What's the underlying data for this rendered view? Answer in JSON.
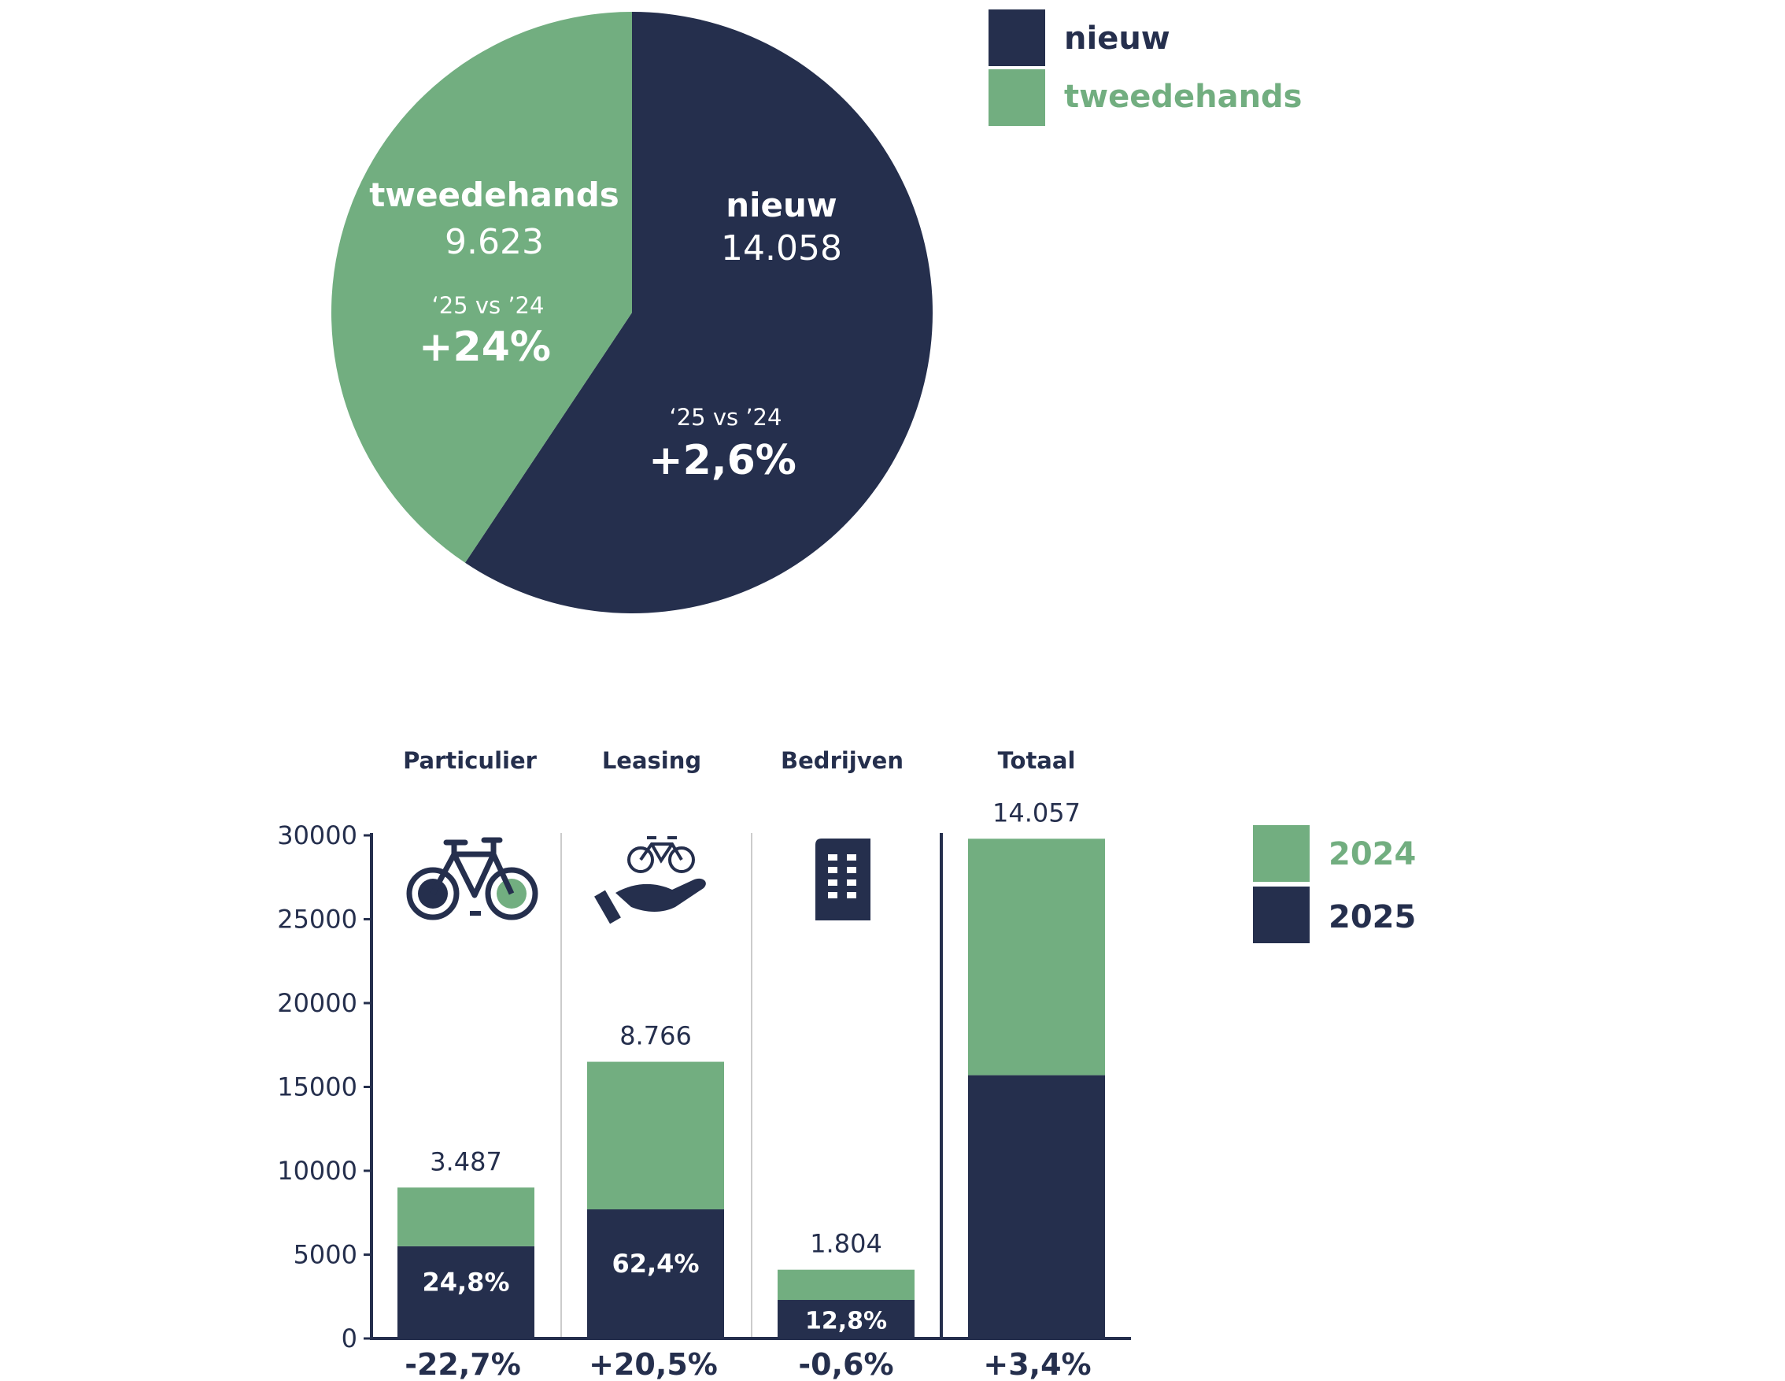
{
  "colors": {
    "nieuw": "#252f4d",
    "tweedehands": "#72ae80",
    "y2024": "#72ae80",
    "y2025": "#252f4d",
    "axis": "#252f4d",
    "text": "#252f4d"
  },
  "pie_legend": [
    {
      "label": "nieuw",
      "color": "#252f4d"
    },
    {
      "label": "tweedehands",
      "color": "#72ae80"
    }
  ],
  "bar_legend": [
    {
      "label": "2024",
      "color": "#72ae80"
    },
    {
      "label": "2025",
      "color": "#252f4d"
    }
  ],
  "pie_labels": {
    "tweedehands_name": "tweedehands",
    "tweedehands_value": "9.623",
    "tweedehands_cmp": "‘25 vs ’24",
    "tweedehands_change": "+24%",
    "nieuw_name": "nieuw",
    "nieuw_value": "14.058",
    "nieuw_cmp": "‘25 vs ’24",
    "nieuw_change": "+2,6%"
  },
  "chart_data": [
    {
      "type": "pie",
      "slices": [
        {
          "name": "nieuw",
          "value": 14058,
          "color": "#252f4d"
        },
        {
          "name": "tweedehands",
          "value": 9623,
          "color": "#72ae80"
        }
      ],
      "legend": "top-right"
    },
    {
      "type": "bar",
      "stacked": true,
      "categories": [
        "Particulier",
        "Leasing",
        "Bedrijven",
        "Totaal"
      ],
      "series": [
        {
          "name": "2025",
          "values": [
            5500,
            7700,
            2300,
            15700
          ]
        },
        {
          "name": "2024",
          "values": [
            3500,
            8800,
            1800,
            14100
          ]
        }
      ],
      "top_labels": [
        "3.487",
        "8.766",
        "1.804",
        "14.057"
      ],
      "inner_labels": [
        "24,8%",
        "62,4%",
        "12,8%",
        ""
      ],
      "change_labels": [
        "-22,7%",
        "+20,5%",
        "-0,6%",
        "+3,4%"
      ],
      "yticks": [
        "0",
        "5000",
        "10000",
        "15000",
        "20000",
        "25000",
        "30000"
      ],
      "ylim": [
        0,
        30000
      ],
      "legend": "right"
    }
  ]
}
